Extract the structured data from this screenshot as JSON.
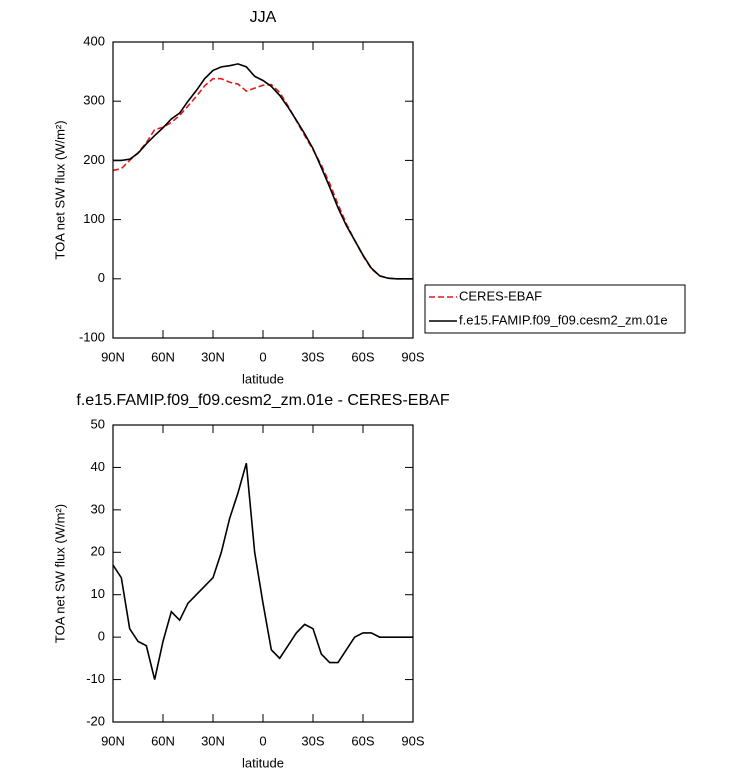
{
  "chart_data": [
    {
      "type": "line",
      "title": "JJA",
      "xlabel": "latitude",
      "ylabel": "TOA net SW flux (W/m²)",
      "x": [
        90,
        85,
        80,
        75,
        70,
        65,
        60,
        55,
        50,
        45,
        40,
        35,
        30,
        25,
        20,
        15,
        10,
        5,
        0,
        -5,
        -10,
        -15,
        -20,
        -25,
        -30,
        -35,
        -40,
        -45,
        -50,
        -55,
        -60,
        -65,
        -70,
        -75,
        -80,
        -85,
        -90
      ],
      "series": [
        {
          "name": "CERES-EBAF",
          "color": "#e41a1c",
          "dash": true,
          "values": [
            183,
            186,
            200,
            213,
            230,
            252,
            256,
            264,
            276,
            292,
            308,
            326,
            338,
            338,
            332,
            329,
            317,
            322,
            327,
            328,
            315,
            292,
            267,
            242,
            218,
            192,
            161,
            126,
            93,
            65,
            39,
            17,
            5,
            1,
            0,
            0,
            0
          ]
        },
        {
          "name": "f.e15.FAMIP.f09_f09.cesm2_zm.01e",
          "color": "#000000",
          "dash": false,
          "values": [
            200,
            200,
            202,
            212,
            228,
            242,
            255,
            270,
            280,
            300,
            318,
            338,
            352,
            358,
            360,
            363,
            358,
            342,
            335,
            325,
            310,
            290,
            268,
            245,
            220,
            188,
            155,
            120,
            90,
            65,
            40,
            18,
            5,
            1,
            0,
            0,
            0
          ]
        }
      ],
      "xlim": [
        90,
        -90
      ],
      "xticks": [
        {
          "value": 90,
          "label": "90N"
        },
        {
          "value": 60,
          "label": "60N"
        },
        {
          "value": 30,
          "label": "30N"
        },
        0,
        {
          "value": -30,
          "label": "30S"
        },
        {
          "value": -60,
          "label": "60S"
        },
        {
          "value": -90,
          "label": "90S"
        }
      ],
      "ylim": [
        -100,
        400
      ],
      "yticks": [
        -100,
        0,
        100,
        200,
        300,
        400
      ]
    },
    {
      "type": "line",
      "title": "f.e15.FAMIP.f09_f09.cesm2_zm.01e - CERES-EBAF",
      "xlabel": "latitude",
      "ylabel": "TOA net SW flux (W/m²)",
      "x": [
        90,
        85,
        80,
        75,
        70,
        65,
        60,
        55,
        50,
        45,
        40,
        35,
        30,
        25,
        20,
        15,
        10,
        5,
        0,
        -5,
        -10,
        -15,
        -20,
        -25,
        -30,
        -35,
        -40,
        -45,
        -50,
        -55,
        -60,
        -65,
        -70,
        -75,
        -80,
        -85,
        -90
      ],
      "values": [
        17,
        14,
        2,
        -1,
        -2,
        -10,
        -1,
        6,
        4,
        8,
        10,
        12,
        14,
        20,
        28,
        34,
        41,
        20,
        8,
        -3,
        -5,
        -2,
        1,
        3,
        2,
        -4,
        -6,
        -6,
        -3,
        0,
        1,
        1,
        0,
        0,
        0,
        0,
        0
      ],
      "color": "#000000",
      "xlim": [
        90,
        -90
      ],
      "xticks": [
        {
          "value": 90,
          "label": "90N"
        },
        {
          "value": 60,
          "label": "60N"
        },
        {
          "value": 30,
          "label": "30N"
        },
        0,
        {
          "value": -30,
          "label": "30S"
        },
        {
          "value": -60,
          "label": "60S"
        },
        {
          "value": -90,
          "label": "90S"
        }
      ],
      "ylim": [
        -20,
        50
      ],
      "yticks": [
        -20,
        -10,
        0,
        10,
        20,
        30,
        40,
        50
      ]
    }
  ]
}
